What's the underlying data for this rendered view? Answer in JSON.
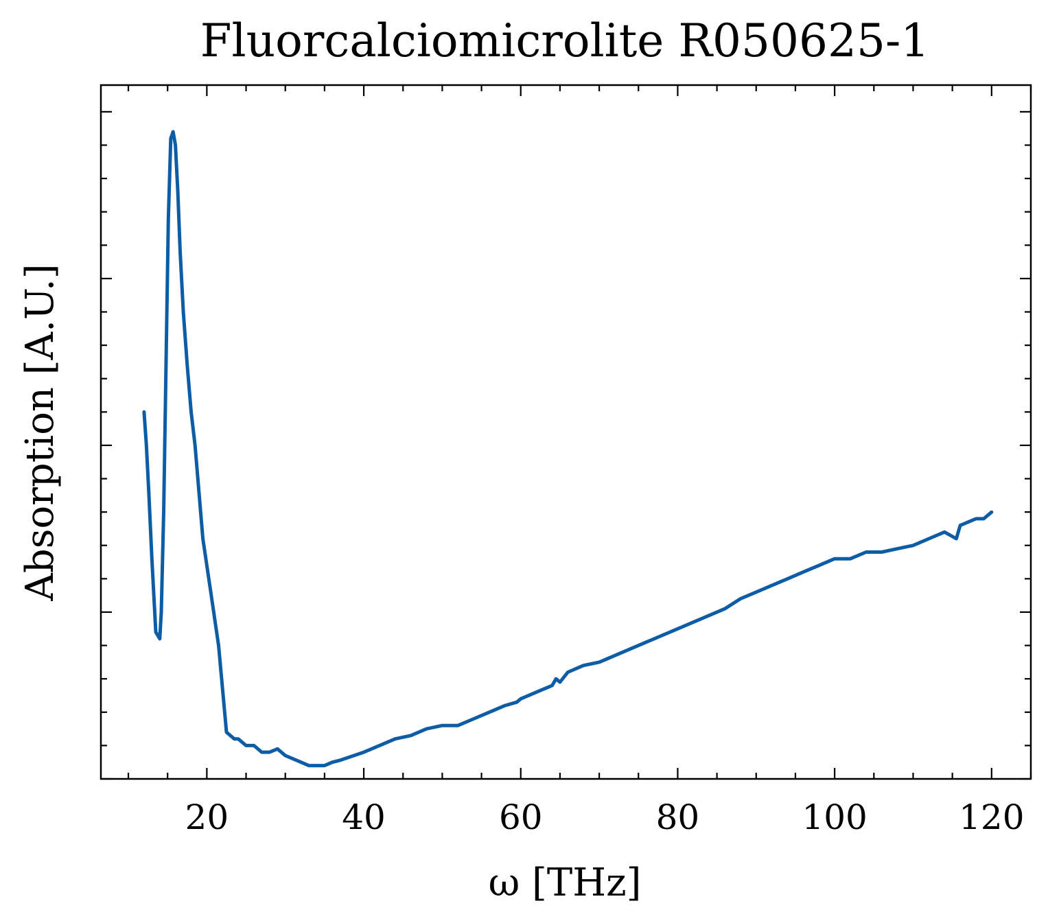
{
  "chart_data": {
    "type": "line",
    "title": "Fluorcalciomicrolite R050625-1",
    "xlabel": "ω [THz]",
    "ylabel": "Absorption [A.U.]",
    "xlim": [
      6.5,
      125
    ],
    "ylim": [
      0.0,
      1.04
    ],
    "x_ticks": [
      20,
      40,
      60,
      80,
      100,
      120
    ],
    "x_minor_step": 5,
    "y_ticks": [
      0.0,
      0.25,
      0.5,
      0.75,
      1.0
    ],
    "y_tick_labels_shown": false,
    "y_minor_step": 0.05,
    "grid": false,
    "line_color": "#0C5DA5",
    "series": [
      {
        "x": [
          12.0,
          12.3,
          12.6,
          13.0,
          13.5,
          14.0,
          14.2,
          14.5,
          14.8,
          15.1,
          15.4,
          15.7,
          16.0,
          16.3,
          16.6,
          17.0,
          17.5,
          18.0,
          18.5,
          19.0,
          19.5,
          20.5,
          21.5,
          22.5,
          23.5,
          24.0,
          25.0,
          26.0,
          27.0,
          28.0,
          29.0,
          30.0,
          31.0,
          32.0,
          33.0,
          34.0,
          35.0,
          36.0,
          37.0,
          38.0,
          40.0,
          42.0,
          44.0,
          46.0,
          48.0,
          50.0,
          52.0,
          54.0,
          56.0,
          58.0,
          59.5,
          60.0,
          62.0,
          64.0,
          64.5,
          65.0,
          66.0,
          68.0,
          70.0,
          72.0,
          74.0,
          76.0,
          78.0,
          80.0,
          82.0,
          84.0,
          86.0,
          88.0,
          90.0,
          92.0,
          94.0,
          96.0,
          98.0,
          100.0,
          102.0,
          104.0,
          106.0,
          108.0,
          110.0,
          112.0,
          114.0,
          115.5,
          116.0,
          118.0,
          119.0,
          120.0
        ],
        "y": [
          0.55,
          0.5,
          0.43,
          0.33,
          0.22,
          0.21,
          0.25,
          0.4,
          0.62,
          0.84,
          0.96,
          0.97,
          0.95,
          0.88,
          0.79,
          0.7,
          0.62,
          0.55,
          0.5,
          0.43,
          0.36,
          0.28,
          0.2,
          0.07,
          0.06,
          0.06,
          0.05,
          0.05,
          0.04,
          0.04,
          0.045,
          0.035,
          0.03,
          0.025,
          0.02,
          0.02,
          0.02,
          0.025,
          0.028,
          0.032,
          0.04,
          0.05,
          0.06,
          0.065,
          0.075,
          0.08,
          0.08,
          0.09,
          0.1,
          0.11,
          0.115,
          0.12,
          0.13,
          0.14,
          0.15,
          0.145,
          0.16,
          0.17,
          0.175,
          0.185,
          0.195,
          0.205,
          0.215,
          0.225,
          0.235,
          0.245,
          0.255,
          0.27,
          0.28,
          0.29,
          0.3,
          0.31,
          0.32,
          0.33,
          0.33,
          0.34,
          0.34,
          0.345,
          0.35,
          0.36,
          0.37,
          0.36,
          0.38,
          0.39,
          0.39,
          0.4
        ]
      }
    ]
  }
}
